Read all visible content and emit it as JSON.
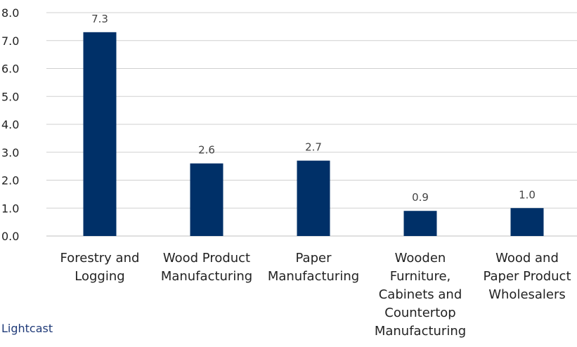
{
  "chart_data": {
    "type": "bar",
    "categories": [
      "Forestry and Logging",
      "Wood Product Manufacturing",
      "Paper Manufacturing",
      "Wooden Furniture, Cabinets and Countertop Manufacturing",
      "Wood and Paper Product Wholesalers"
    ],
    "category_lines": [
      [
        "Forestry and",
        "Logging"
      ],
      [
        "Wood Product",
        "Manufacturing"
      ],
      [
        "Paper",
        "Manufacturing"
      ],
      [
        "Wooden",
        "Furniture,",
        "Cabinets and",
        "Countertop",
        "Manufacturing"
      ],
      [
        "Wood and",
        "Paper Product",
        "Wholesalers"
      ]
    ],
    "values": [
      7.3,
      2.6,
      2.7,
      0.9,
      1.0
    ],
    "data_labels": [
      "7.3",
      "2.6",
      "2.7",
      "0.9",
      "1.0"
    ],
    "ylim": [
      0,
      8
    ],
    "yticks": [
      "0.0",
      "1.0",
      "2.0",
      "3.0",
      "4.0",
      "5.0",
      "6.0",
      "7.0",
      "8.0"
    ],
    "grid": true,
    "bar_color": "#003068",
    "title": "",
    "xlabel": "",
    "ylabel": ""
  },
  "source": "Lightcast"
}
